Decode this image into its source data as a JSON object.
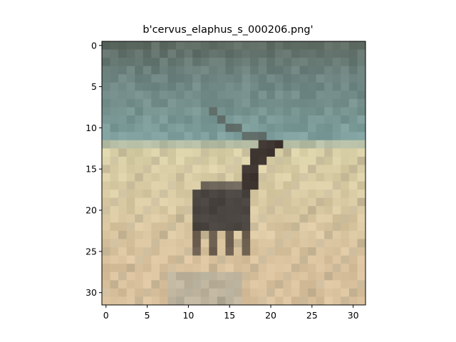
{
  "figure": {
    "title": "b'cervus_elaphus_s_000206.png'"
  },
  "image": {
    "subject": "red deer stag with antlers standing in a grassy field under a teal sky",
    "rows": 32,
    "cols": 32,
    "palette": {
      "sky_top": "#5f6c64",
      "sky_mid": "#6f8582",
      "sky_low": "#7fa2a0",
      "field_light": "#d8cfa6",
      "field_warm": "#d9c09c",
      "field_dusty": "#b9ad92",
      "deer_body": "#4a4540",
      "deer_dark": "#3e3530",
      "grass_blue": "#8c9aa0"
    }
  },
  "axes": {
    "x_ticks": [
      "0",
      "5",
      "10",
      "15",
      "20",
      "25",
      "30"
    ],
    "y_ticks": [
      "0",
      "5",
      "10",
      "15",
      "20",
      "25",
      "30"
    ]
  }
}
